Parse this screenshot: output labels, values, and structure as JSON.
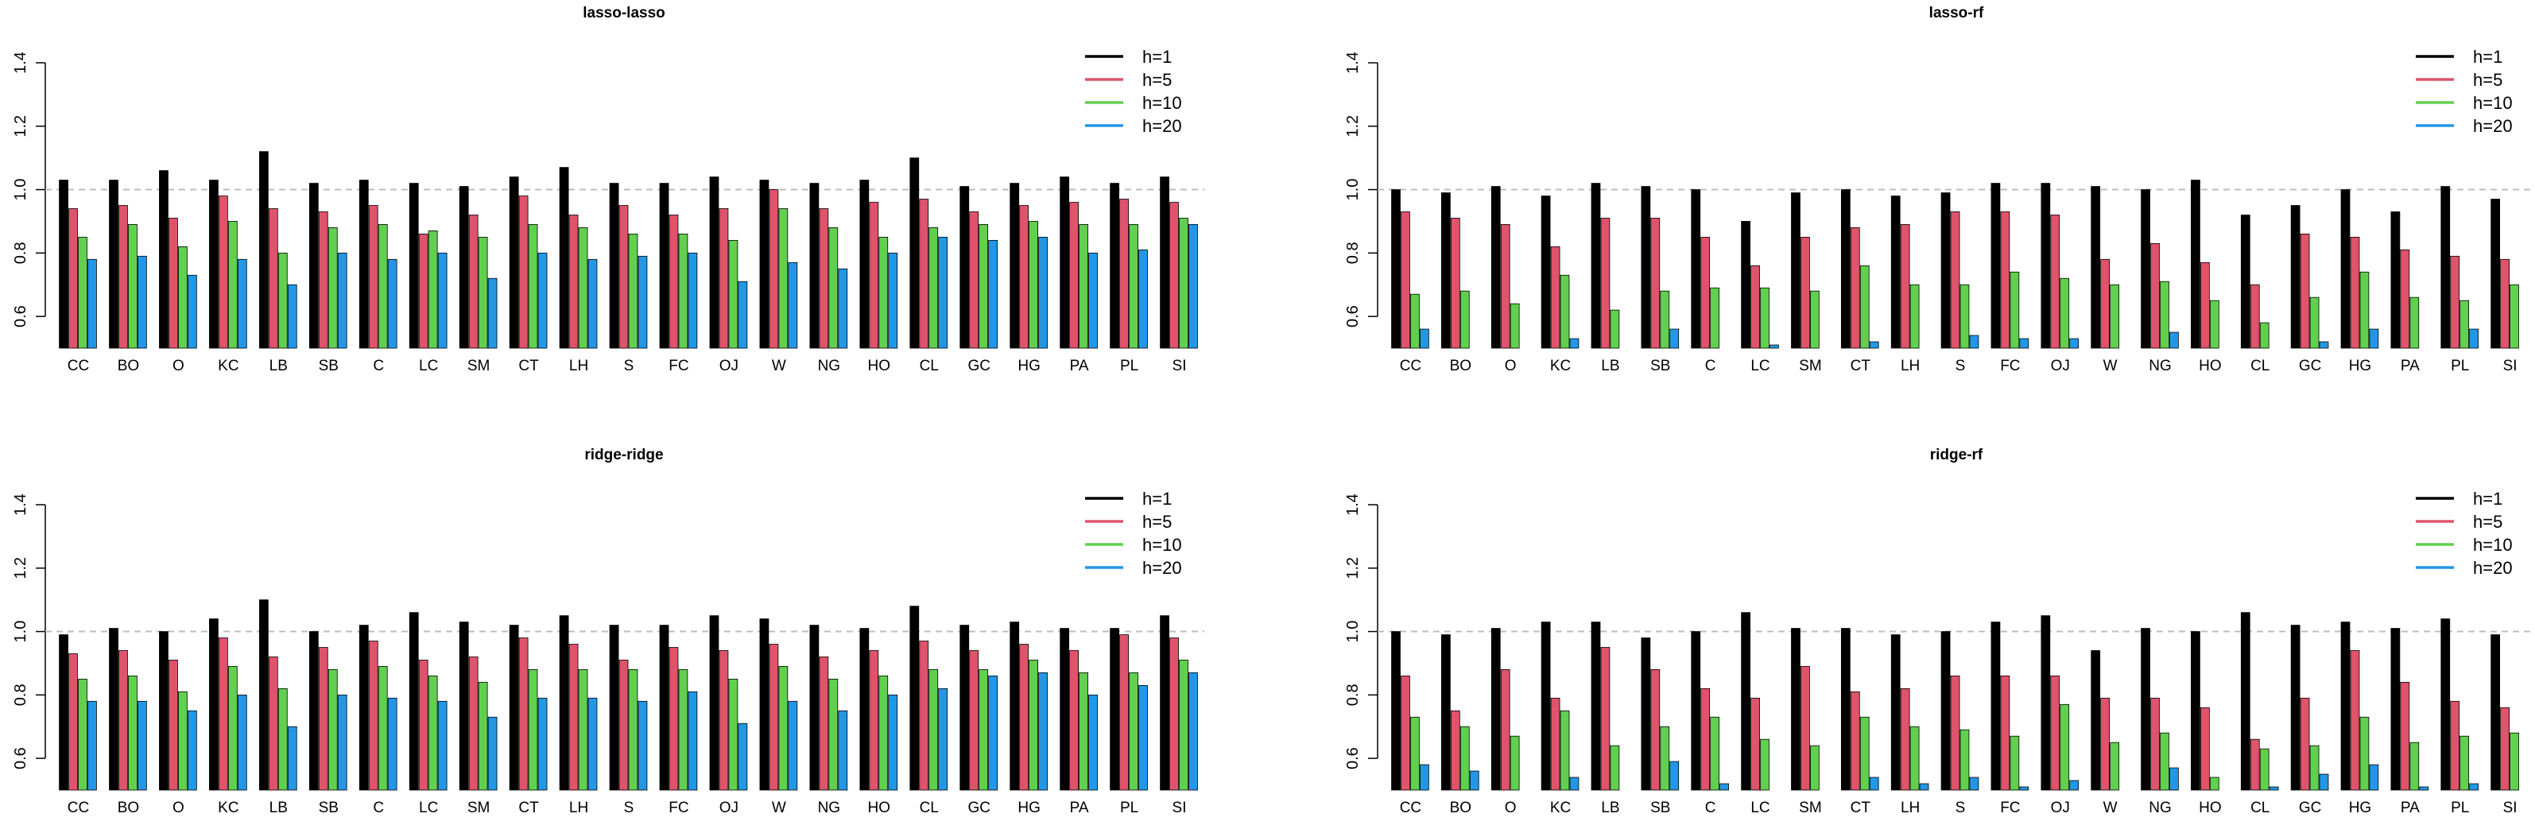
{
  "chart_data": [
    {
      "type": "bar",
      "title": "lasso-lasso",
      "xlabel": "",
      "ylabel": "",
      "ylim": [
        0.5,
        1.4
      ],
      "yticks": [
        0.6,
        0.8,
        1.0,
        1.2,
        1.4
      ],
      "reference_line": 1.0,
      "legend_position": "top-right",
      "categories": [
        "CC",
        "BO",
        "O",
        "KC",
        "LB",
        "SB",
        "C",
        "LC",
        "SM",
        "CT",
        "LH",
        "S",
        "FC",
        "OJ",
        "W",
        "NG",
        "HO",
        "CL",
        "GC",
        "HG",
        "PA",
        "PL",
        "SI"
      ],
      "series": [
        {
          "name": "h=1",
          "color": "#000000",
          "values": [
            1.03,
            1.03,
            1.06,
            1.03,
            1.12,
            1.02,
            1.03,
            1.02,
            1.01,
            1.04,
            1.07,
            1.02,
            1.02,
            1.04,
            1.03,
            1.02,
            1.03,
            1.1,
            1.01,
            1.02,
            1.04,
            1.02,
            1.04
          ]
        },
        {
          "name": "h=5",
          "color": "#DF536B",
          "values": [
            0.94,
            0.95,
            0.91,
            0.98,
            0.94,
            0.93,
            0.95,
            0.86,
            0.92,
            0.98,
            0.92,
            0.95,
            0.92,
            0.94,
            1.0,
            0.94,
            0.96,
            0.97,
            0.93,
            0.95,
            0.96,
            0.97,
            0.96
          ]
        },
        {
          "name": "h=10",
          "color": "#61D04F",
          "values": [
            0.85,
            0.89,
            0.82,
            0.9,
            0.8,
            0.88,
            0.89,
            0.87,
            0.85,
            0.89,
            0.88,
            0.86,
            0.86,
            0.84,
            0.94,
            0.88,
            0.85,
            0.88,
            0.89,
            0.9,
            0.89,
            0.89,
            0.91
          ]
        },
        {
          "name": "h=20",
          "color": "#2297E6",
          "values": [
            0.78,
            0.79,
            0.73,
            0.78,
            0.7,
            0.8,
            0.78,
            0.8,
            0.72,
            0.8,
            0.78,
            0.79,
            0.8,
            0.71,
            0.77,
            0.75,
            0.8,
            0.85,
            0.84,
            0.85,
            0.8,
            0.81,
            0.89
          ]
        }
      ]
    },
    {
      "type": "bar",
      "title": "lasso-rf",
      "xlabel": "",
      "ylabel": "",
      "ylim": [
        0.5,
        1.4
      ],
      "yticks": [
        0.6,
        0.8,
        1.0,
        1.2,
        1.4
      ],
      "reference_line": 1.0,
      "legend_position": "top-right",
      "categories": [
        "CC",
        "BO",
        "O",
        "KC",
        "LB",
        "SB",
        "C",
        "LC",
        "SM",
        "CT",
        "LH",
        "S",
        "FC",
        "OJ",
        "W",
        "NG",
        "HO",
        "CL",
        "GC",
        "HG",
        "PA",
        "PL",
        "SI"
      ],
      "series": [
        {
          "name": "h=1",
          "color": "#000000",
          "values": [
            1.0,
            0.99,
            1.01,
            0.98,
            1.02,
            1.01,
            1.0,
            0.9,
            0.99,
            1.0,
            0.98,
            0.99,
            1.02,
            1.02,
            1.01,
            1.0,
            1.03,
            0.92,
            0.95,
            1.0,
            0.93,
            1.01,
            0.97
          ]
        },
        {
          "name": "h=5",
          "color": "#DF536B",
          "values": [
            0.93,
            0.91,
            0.89,
            0.82,
            0.91,
            0.91,
            0.85,
            0.76,
            0.85,
            0.88,
            0.89,
            0.93,
            0.93,
            0.92,
            0.78,
            0.83,
            0.77,
            0.7,
            0.86,
            0.85,
            0.81,
            0.79,
            0.78
          ]
        },
        {
          "name": "h=10",
          "color": "#61D04F",
          "values": [
            0.67,
            0.68,
            0.64,
            0.73,
            0.62,
            0.68,
            0.69,
            0.69,
            0.68,
            0.76,
            0.7,
            0.7,
            0.74,
            0.72,
            0.7,
            0.71,
            0.65,
            0.58,
            0.66,
            0.74,
            0.66,
            0.65,
            0.7
          ]
        },
        {
          "name": "h=20",
          "color": "#2297E6",
          "values": [
            0.56,
            0.5,
            0.5,
            0.53,
            0.5,
            0.56,
            0.5,
            0.51,
            0.5,
            0.52,
            0.5,
            0.54,
            0.53,
            0.53,
            0.5,
            0.55,
            0.5,
            0.5,
            0.52,
            0.56,
            0.5,
            0.56,
            0.5
          ]
        }
      ]
    },
    {
      "type": "bar",
      "title": "ridge-ridge",
      "xlabel": "",
      "ylabel": "",
      "ylim": [
        0.5,
        1.4
      ],
      "yticks": [
        0.6,
        0.8,
        1.0,
        1.2,
        1.4
      ],
      "reference_line": 1.0,
      "legend_position": "top-right",
      "categories": [
        "CC",
        "BO",
        "O",
        "KC",
        "LB",
        "SB",
        "C",
        "LC",
        "SM",
        "CT",
        "LH",
        "S",
        "FC",
        "OJ",
        "W",
        "NG",
        "HO",
        "CL",
        "GC",
        "HG",
        "PA",
        "PL",
        "SI"
      ],
      "series": [
        {
          "name": "h=1",
          "color": "#000000",
          "values": [
            0.99,
            1.01,
            1.0,
            1.04,
            1.1,
            1.0,
            1.02,
            1.06,
            1.03,
            1.02,
            1.05,
            1.02,
            1.02,
            1.05,
            1.04,
            1.02,
            1.01,
            1.08,
            1.02,
            1.03,
            1.01,
            1.01,
            1.05
          ]
        },
        {
          "name": "h=5",
          "color": "#DF536B",
          "values": [
            0.93,
            0.94,
            0.91,
            0.98,
            0.92,
            0.95,
            0.97,
            0.91,
            0.92,
            0.98,
            0.96,
            0.91,
            0.95,
            0.94,
            0.96,
            0.92,
            0.94,
            0.97,
            0.94,
            0.96,
            0.94,
            0.99,
            0.98
          ]
        },
        {
          "name": "h=10",
          "color": "#61D04F",
          "values": [
            0.85,
            0.86,
            0.81,
            0.89,
            0.82,
            0.88,
            0.89,
            0.86,
            0.84,
            0.88,
            0.88,
            0.88,
            0.88,
            0.85,
            0.89,
            0.85,
            0.86,
            0.88,
            0.88,
            0.91,
            0.87,
            0.87,
            0.91
          ]
        },
        {
          "name": "h=20",
          "color": "#2297E6",
          "values": [
            0.78,
            0.78,
            0.75,
            0.8,
            0.7,
            0.8,
            0.79,
            0.78,
            0.73,
            0.79,
            0.79,
            0.78,
            0.81,
            0.71,
            0.78,
            0.75,
            0.8,
            0.82,
            0.86,
            0.87,
            0.8,
            0.83,
            0.87
          ]
        }
      ]
    },
    {
      "type": "bar",
      "title": "ridge-rf",
      "xlabel": "",
      "ylabel": "",
      "ylim": [
        0.5,
        1.4
      ],
      "yticks": [
        0.6,
        0.8,
        1.0,
        1.2,
        1.4
      ],
      "reference_line": 1.0,
      "legend_position": "top-right",
      "categories": [
        "CC",
        "BO",
        "O",
        "KC",
        "LB",
        "SB",
        "C",
        "LC",
        "SM",
        "CT",
        "LH",
        "S",
        "FC",
        "OJ",
        "W",
        "NG",
        "HO",
        "CL",
        "GC",
        "HG",
        "PA",
        "PL",
        "SI"
      ],
      "series": [
        {
          "name": "h=1",
          "color": "#000000",
          "values": [
            1.0,
            0.99,
            1.01,
            1.03,
            1.03,
            0.98,
            1.0,
            1.06,
            1.01,
            1.01,
            0.99,
            1.0,
            1.03,
            1.05,
            0.94,
            1.01,
            1.0,
            1.06,
            1.02,
            1.03,
            1.01,
            1.04,
            0.99
          ]
        },
        {
          "name": "h=5",
          "color": "#DF536B",
          "values": [
            0.86,
            0.75,
            0.88,
            0.79,
            0.95,
            0.88,
            0.82,
            0.79,
            0.89,
            0.81,
            0.82,
            0.86,
            0.86,
            0.86,
            0.79,
            0.79,
            0.76,
            0.66,
            0.79,
            0.94,
            0.84,
            0.78,
            0.76
          ]
        },
        {
          "name": "h=10",
          "color": "#61D04F",
          "values": [
            0.73,
            0.7,
            0.67,
            0.75,
            0.64,
            0.7,
            0.73,
            0.66,
            0.64,
            0.73,
            0.7,
            0.69,
            0.67,
            0.77,
            0.65,
            0.68,
            0.54,
            0.63,
            0.64,
            0.73,
            0.65,
            0.67,
            0.68
          ]
        },
        {
          "name": "h=20",
          "color": "#2297E6",
          "values": [
            0.58,
            0.56,
            0.5,
            0.54,
            0.5,
            0.59,
            0.52,
            0.5,
            0.5,
            0.54,
            0.52,
            0.54,
            0.51,
            0.53,
            0.5,
            0.57,
            0.5,
            0.51,
            0.55,
            0.58,
            0.51,
            0.52,
            0.5
          ]
        }
      ]
    }
  ]
}
